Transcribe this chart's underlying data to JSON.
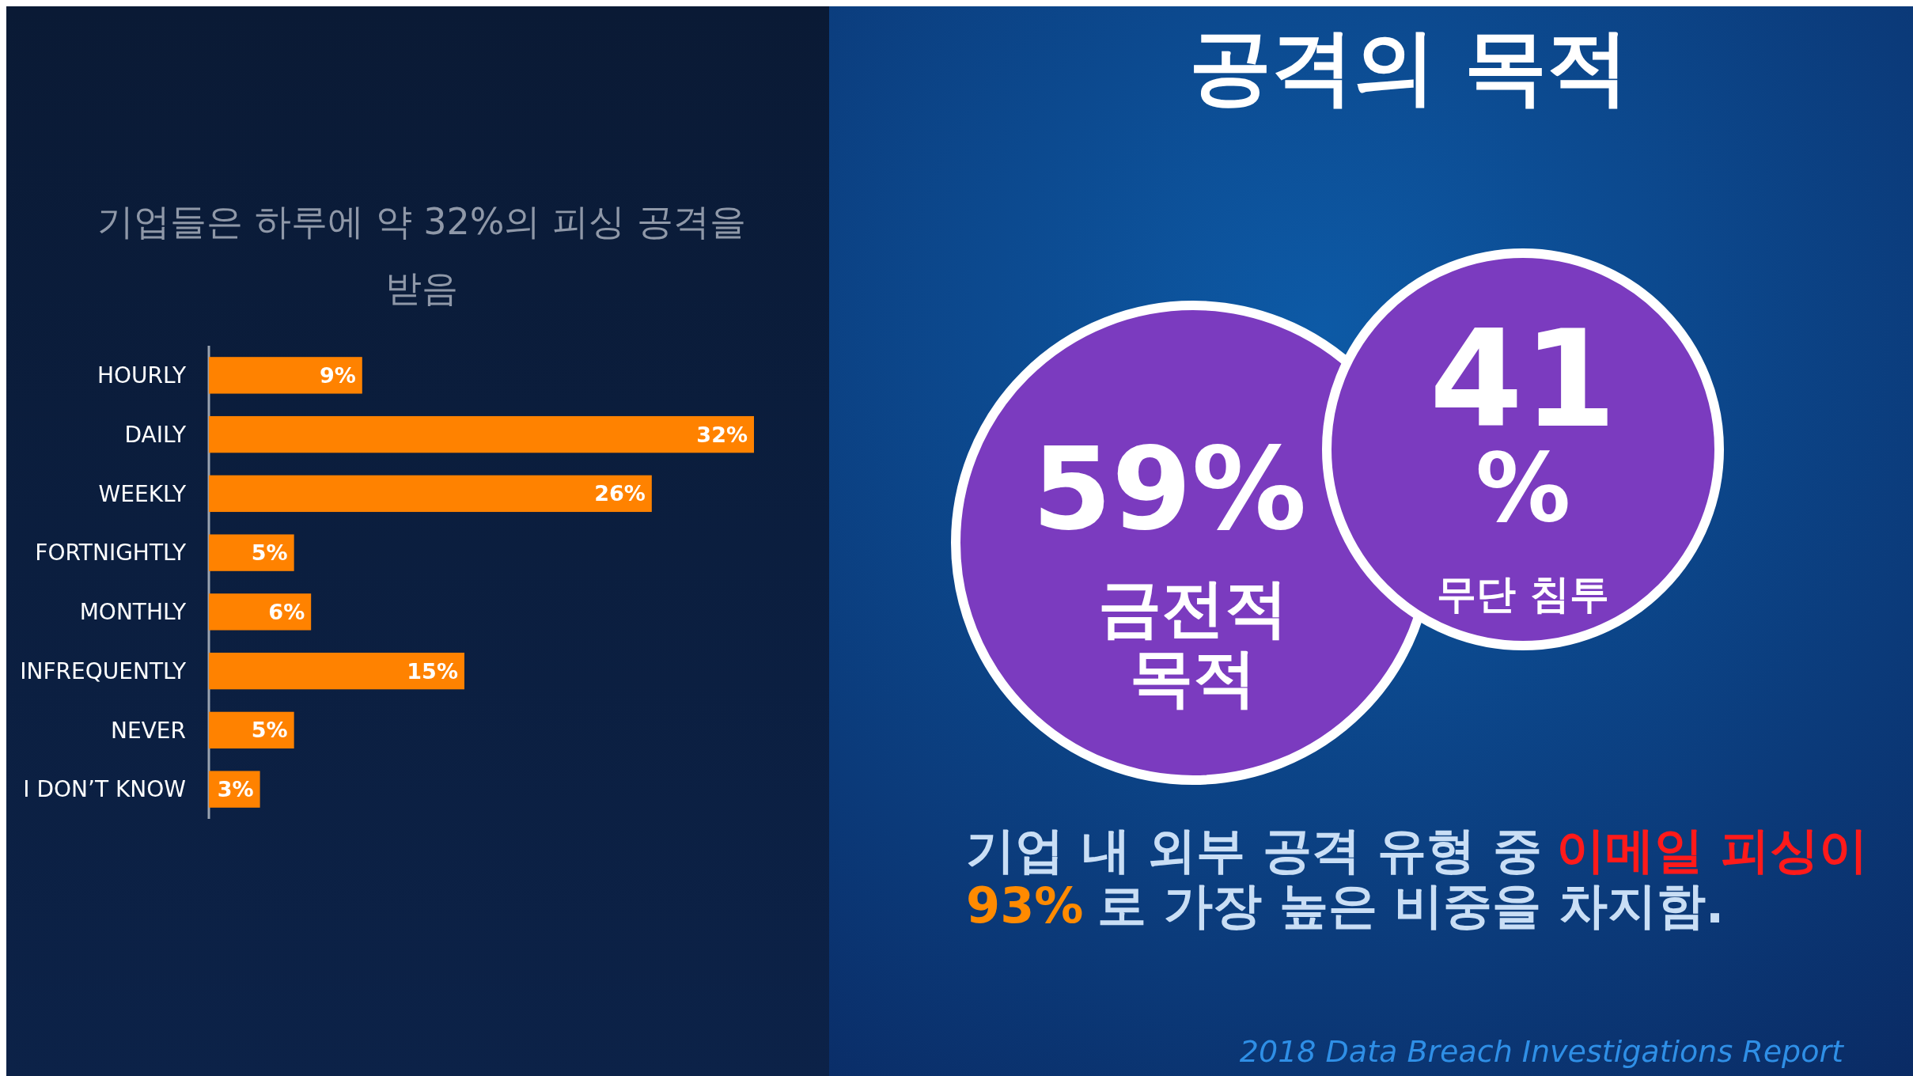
{
  "chart_data": [
    {
      "type": "bar",
      "orientation": "horizontal",
      "title": "기업들은 하루에 약 32%의 피싱 공격을 받음",
      "categories": [
        "HOURLY",
        "DAILY",
        "WEEKLY",
        "FORTNIGHTLY",
        "MONTHLY",
        "INFREQUENTLY",
        "NEVER",
        "I DON’T KNOW"
      ],
      "values": [
        9,
        32,
        26,
        5,
        6,
        15,
        5,
        3
      ],
      "value_labels": [
        "9%",
        "32%",
        "26%",
        "5%",
        "6%",
        "15%",
        "5%",
        "3%"
      ],
      "color": "#ff8200",
      "tick_labels": "y"
    },
    {
      "type": "other",
      "title": "공격의 목적",
      "categories": [
        "금전적 목적",
        "무단 침투"
      ],
      "values": [
        59,
        41
      ],
      "value_labels": [
        "59%",
        "41 %"
      ],
      "color": "#7b3bbf",
      "annotations": [
        "기업 내 외부 공격 유형 중",
        "이메일 피싱이",
        "93%",
        "로 가장 높은 비중을 차지함.",
        "2018 Data Breach Investigations Report"
      ]
    }
  ]
}
